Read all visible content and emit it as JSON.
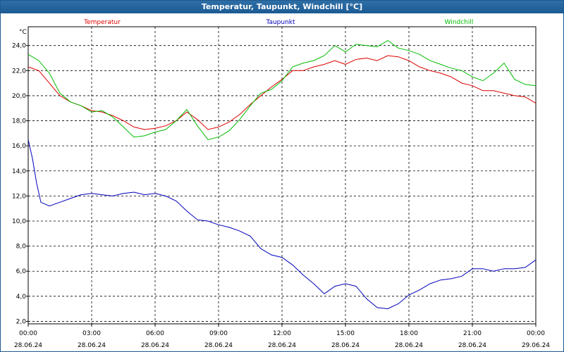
{
  "window": {
    "title": "Temperatur, Taupunkt, Windchill [°C]"
  },
  "colors": {
    "titlebar": "#1f5e96",
    "grid": "#000000",
    "temperature": "#dd0000",
    "dewpoint": "#0000bb",
    "windchill": "#00bb00"
  },
  "chart_data": {
    "type": "line",
    "title": "Temperatur, Taupunkt, Windchill [°C]",
    "ylabel": "°C",
    "ylim": [
      1.8,
      25.5
    ],
    "yticks": [
      "2,0",
      "4,0",
      "6,0",
      "8,0",
      "10,0",
      "12,0",
      "14,0",
      "16,0",
      "18,0",
      "20,0",
      "22,0",
      "24,0"
    ],
    "ytick_values": [
      2,
      4,
      6,
      8,
      10,
      12,
      14,
      16,
      18,
      20,
      22,
      24
    ],
    "xlim": [
      0,
      24
    ],
    "xticks": [
      {
        "time": "00:00",
        "date": "28.06.24"
      },
      {
        "time": "03:00",
        "date": "28.06.24"
      },
      {
        "time": "06:00",
        "date": "28.06.24"
      },
      {
        "time": "09:00",
        "date": "28.06.24"
      },
      {
        "time": "12:00",
        "date": "28.06.24"
      },
      {
        "time": "15:00",
        "date": "28.06.24"
      },
      {
        "time": "18:00",
        "date": "28.06.24"
      },
      {
        "time": "21:00",
        "date": "28.06.24"
      },
      {
        "time": "00:00",
        "date": "29.06.24"
      }
    ],
    "grid": true,
    "legend": "top",
    "x_unit": "hours since 28.06.24 00:00",
    "series": [
      {
        "name": "Temperatur",
        "color": "#dd0000",
        "x": [
          0,
          0.5,
          1,
          1.5,
          2,
          2.5,
          3,
          3.5,
          4,
          4.5,
          5,
          5.5,
          6,
          6.5,
          7,
          7.5,
          8,
          8.5,
          9,
          9.5,
          10,
          10.5,
          11,
          11.5,
          12,
          12.5,
          13,
          13.5,
          14,
          14.5,
          15,
          15.5,
          16,
          16.5,
          17,
          17.5,
          18,
          18.5,
          19,
          19.5,
          20,
          20.5,
          21,
          21.5,
          22,
          22.5,
          23,
          23.5,
          24
        ],
        "y": [
          22.3,
          22,
          21,
          20,
          19.5,
          19.2,
          18.8,
          18.7,
          18.4,
          18,
          17.5,
          17.3,
          17.4,
          17.6,
          18,
          18.7,
          18.1,
          17.3,
          17.5,
          17.9,
          18.5,
          19.3,
          20,
          20.7,
          21.3,
          22,
          22,
          22.3,
          22.5,
          22.8,
          22.5,
          22.9,
          23,
          22.8,
          23.2,
          23.1,
          22.8,
          22.3,
          22,
          21.8,
          21.5,
          21,
          20.8,
          20.4,
          20.4,
          20.2,
          20,
          19.9,
          19.4
        ]
      },
      {
        "name": "Taupunkt",
        "color": "#0000bb",
        "x": [
          0,
          0.2,
          0.4,
          0.6,
          1,
          1.5,
          2,
          2.5,
          3,
          3.5,
          4,
          4.5,
          5,
          5.5,
          6,
          6.5,
          7,
          7.5,
          8,
          8.5,
          9,
          9.5,
          10,
          10.5,
          11,
          11.5,
          12,
          12.5,
          13,
          13.5,
          14,
          14.5,
          15,
          15.5,
          16,
          16.5,
          17,
          17.5,
          18,
          18.5,
          19,
          19.5,
          20,
          20.5,
          21,
          21.5,
          22,
          22.5,
          23,
          23.5,
          24
        ],
        "y": [
          16.5,
          15,
          13,
          11.5,
          11.2,
          11.5,
          11.8,
          12.1,
          12.2,
          12.1,
          12,
          12.2,
          12.3,
          12.1,
          12.2,
          12,
          11.6,
          10.8,
          10.1,
          10,
          9.7,
          9.5,
          9.2,
          8.8,
          7.8,
          7.3,
          7.1,
          6.5,
          5.7,
          5,
          4.2,
          4.8,
          5,
          4.8,
          3.8,
          3.1,
          3,
          3.4,
          4.1,
          4.5,
          5,
          5.3,
          5.4,
          5.6,
          6.2,
          6.2,
          6,
          6.2,
          6.2,
          6.3,
          6.9
        ]
      },
      {
        "name": "Windchill",
        "color": "#00bb00",
        "x": [
          0,
          0.5,
          1,
          1.5,
          2,
          2.5,
          3,
          3.5,
          4,
          4.5,
          5,
          5.5,
          6,
          6.5,
          7,
          7.5,
          8,
          8.5,
          9,
          9.5,
          10,
          10.5,
          11,
          11.5,
          12,
          12.5,
          13,
          13.5,
          14,
          14.5,
          15,
          15.5,
          16,
          16.5,
          17,
          17.5,
          18,
          18.5,
          19,
          19.5,
          20,
          20.5,
          21,
          21.5,
          22,
          22.5,
          23,
          23.5,
          24
        ],
        "y": [
          23.3,
          22.8,
          21.8,
          20.2,
          19.5,
          19.2,
          18.7,
          18.8,
          18.3,
          17.5,
          16.7,
          16.8,
          17.1,
          17.3,
          18,
          18.9,
          17.6,
          16.5,
          16.7,
          17.2,
          18.1,
          19.2,
          20.2,
          20.5,
          21.2,
          22.3,
          22.6,
          22.8,
          23.2,
          24,
          23.5,
          24.1,
          24,
          23.9,
          24.4,
          23.8,
          23.6,
          23.3,
          22.8,
          22.5,
          22.2,
          22,
          21.5,
          21.2,
          21.8,
          22.6,
          21.3,
          20.9,
          20.8
        ]
      }
    ]
  }
}
